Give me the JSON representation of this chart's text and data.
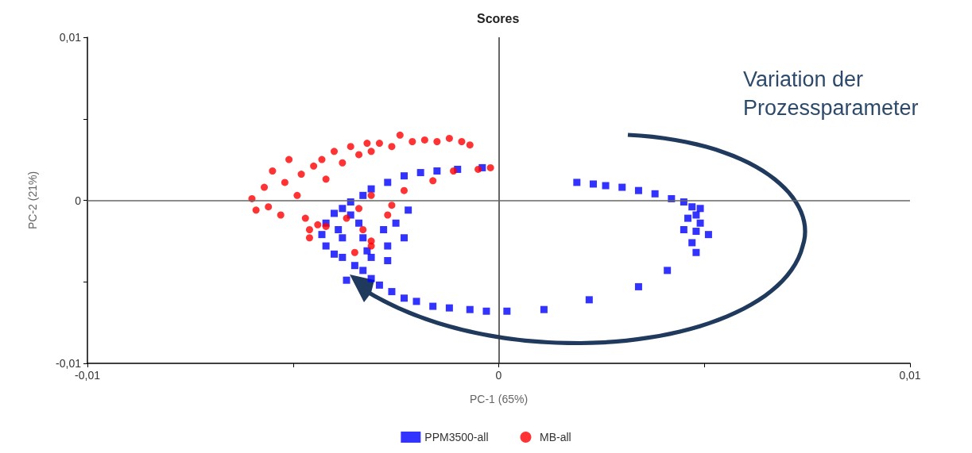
{
  "chart_data": {
    "type": "scatter",
    "title": "Scores",
    "xlabel": "PC-1 (65%)",
    "ylabel": "PC-2 (21%)",
    "xlim": [
      -0.01,
      0.01
    ],
    "ylim": [
      -0.01,
      0.01
    ],
    "xticks": [
      {
        "value": -0.01,
        "label": "-0,01"
      },
      {
        "value": -0.005,
        "label": null
      },
      0,
      {
        "value": 0.005,
        "label": null
      },
      {
        "value": 0.01,
        "label": "0,01"
      }
    ],
    "yticks": [
      {
        "value": -0.01,
        "label": "-0,01"
      },
      {
        "value": -0.005,
        "label": null
      },
      0,
      {
        "value": 0.005,
        "label": null
      },
      {
        "value": 0.01,
        "label": "0,01"
      }
    ],
    "grid": false,
    "legend": "bottom",
    "ref_lines": [
      {
        "axis": "x",
        "value": 0,
        "color": "#333333"
      },
      {
        "axis": "y",
        "value": 0,
        "color": "#666666"
      }
    ],
    "annotations": [
      "Variation der Prozessparameter"
    ],
    "series": [
      {
        "name": "PPM3500-all",
        "color": "#0000ff",
        "marker": "square",
        "x": [
          0.0019,
          0.0023,
          0.0026,
          0.003,
          0.0034,
          0.0038,
          0.0042,
          0.0045,
          0.0047,
          0.0049,
          0.0048,
          0.0046,
          0.0049,
          0.0045,
          0.0048,
          0.0051,
          0.0047,
          0.0048,
          0.0041,
          0.0034,
          0.0022,
          0.0011,
          0.0002,
          -0.0003,
          -0.0007,
          -0.0012,
          -0.0016,
          -0.002,
          -0.0023,
          -0.0026,
          -0.0029,
          -0.0031,
          -0.0033,
          -0.0035,
          -0.0037,
          -0.0038,
          -0.004,
          -0.0042,
          -0.0043,
          -0.0042,
          -0.004,
          -0.0038,
          -0.0036,
          -0.0033,
          -0.0031,
          -0.0027,
          -0.0023,
          -0.0019,
          -0.0015,
          -0.001,
          -0.0004,
          -0.0036,
          -0.0034,
          -0.0033,
          -0.0032,
          -0.0031,
          -0.0028,
          -0.0025,
          -0.0022,
          -0.0027,
          -0.0023,
          -0.0027,
          -0.0038,
          -0.0039
        ],
        "values": [
          0.0011,
          0.001,
          0.0009,
          0.0008,
          0.0006,
          0.0004,
          0.0001,
          -0.0001,
          -0.0004,
          -0.0005,
          -0.0009,
          -0.0011,
          -0.0014,
          -0.0018,
          -0.0019,
          -0.0021,
          -0.0026,
          -0.0032,
          -0.0043,
          -0.0053,
          -0.0061,
          -0.0067,
          -0.0068,
          -0.0068,
          -0.0067,
          -0.0066,
          -0.0065,
          -0.0062,
          -0.006,
          -0.0056,
          -0.0052,
          -0.0048,
          -0.0043,
          -0.004,
          -0.0049,
          -0.0035,
          -0.0033,
          -0.0028,
          -0.0021,
          -0.0014,
          -0.0008,
          -0.0005,
          -0.0001,
          0.0003,
          0.0007,
          0.0011,
          0.0015,
          0.0017,
          0.0018,
          0.0019,
          0.002,
          -0.0009,
          -0.0014,
          -0.0023,
          -0.0031,
          -0.0035,
          -0.0018,
          -0.0014,
          -0.0006,
          -0.0028,
          -0.0023,
          -0.0037,
          -0.0023,
          -0.0018
        ]
      },
      {
        "name": "MB-all",
        "color": "#ff0000",
        "marker": "circle",
        "x": [
          -0.006,
          -0.0059,
          -0.0057,
          -0.0056,
          -0.0055,
          -0.0053,
          -0.0052,
          -0.0051,
          -0.0049,
          -0.0048,
          -0.0047,
          -0.0046,
          -0.0045,
          -0.0043,
          -0.0042,
          -0.004,
          -0.0038,
          -0.0036,
          -0.0034,
          -0.0032,
          -0.0031,
          -0.0029,
          -0.0026,
          -0.0024,
          -0.0021,
          -0.0018,
          -0.0015,
          -0.0012,
          -0.0009,
          -0.0007,
          -0.0002,
          -0.0005,
          -0.0011,
          -0.0016,
          -0.0023,
          -0.0031,
          -0.0034,
          -0.0044,
          -0.0042,
          -0.0037,
          -0.0033,
          -0.0031,
          -0.0031,
          -0.0035,
          -0.0046,
          -0.0027,
          -0.0026
        ],
        "values": [
          0.0001,
          -0.0006,
          0.0008,
          -0.0004,
          0.0018,
          -0.0009,
          0.0011,
          0.0025,
          0.0003,
          0.0016,
          -0.0011,
          -0.0018,
          0.0021,
          0.0025,
          0.0013,
          0.003,
          0.0023,
          0.0033,
          0.0028,
          0.0035,
          0.003,
          0.0035,
          0.0033,
          0.004,
          0.0036,
          0.0037,
          0.0036,
          0.0038,
          0.0036,
          0.0034,
          0.002,
          0.0019,
          0.0018,
          0.0012,
          0.0006,
          0.0003,
          -0.0005,
          -0.0015,
          -0.0016,
          -0.0011,
          -0.0018,
          -0.0025,
          -0.0028,
          -0.0032,
          -0.0023,
          -0.0009,
          -0.0003
        ]
      }
    ]
  }
}
